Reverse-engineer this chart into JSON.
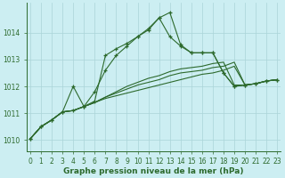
{
  "xlabel": "Graphe pression niveau de la mer (hPa)",
  "background_color": "#cceef2",
  "line_color": "#2d6a2d",
  "grid_color": "#aad4d8",
  "x": [
    0,
    1,
    2,
    3,
    4,
    5,
    6,
    7,
    8,
    9,
    10,
    11,
    12,
    13,
    14,
    15,
    16,
    17,
    18,
    19,
    20,
    21,
    22,
    23
  ],
  "lines_with_markers": [
    [
      1010.05,
      1010.5,
      1010.75,
      1011.05,
      1012.0,
      1011.25,
      1011.8,
      1012.6,
      1013.15,
      1013.5,
      1013.85,
      1014.1,
      1014.55,
      1014.75,
      1013.55,
      1013.25,
      1013.25,
      1013.25,
      1012.5,
      1012.0,
      1012.05,
      1012.1,
      1012.2,
      1012.25
    ],
    [
      1010.05,
      1010.5,
      1010.75,
      1011.05,
      1011.1,
      1011.25,
      1011.45,
      1013.15,
      1013.4,
      1013.6,
      1013.85,
      1014.15,
      1014.55,
      1013.85,
      1013.5,
      1013.25,
      1013.25,
      1013.25,
      1012.5,
      1012.0,
      1012.05,
      1012.1,
      1012.2,
      1012.25
    ]
  ],
  "lines_no_markers": [
    [
      1010.05,
      1010.5,
      1010.75,
      1011.05,
      1011.1,
      1011.25,
      1011.4,
      1011.6,
      1011.8,
      1012.0,
      1012.15,
      1012.3,
      1012.4,
      1012.55,
      1012.65,
      1012.7,
      1012.75,
      1012.85,
      1012.9,
      1012.05,
      1012.05,
      1012.1,
      1012.2,
      1012.25
    ],
    [
      1010.05,
      1010.5,
      1010.75,
      1011.05,
      1011.1,
      1011.25,
      1011.4,
      1011.6,
      1011.75,
      1011.9,
      1012.05,
      1012.15,
      1012.25,
      1012.4,
      1012.5,
      1012.55,
      1012.6,
      1012.7,
      1012.75,
      1012.9,
      1012.05,
      1012.1,
      1012.2,
      1012.25
    ],
    [
      1010.05,
      1010.5,
      1010.75,
      1011.05,
      1011.1,
      1011.25,
      1011.4,
      1011.55,
      1011.65,
      1011.75,
      1011.85,
      1011.95,
      1012.05,
      1012.15,
      1012.25,
      1012.35,
      1012.45,
      1012.5,
      1012.6,
      1012.75,
      1012.05,
      1012.1,
      1012.2,
      1012.25
    ]
  ],
  "ylim": [
    1009.6,
    1015.1
  ],
  "yticks": [
    1010,
    1011,
    1012,
    1013,
    1014
  ],
  "xticks": [
    0,
    1,
    2,
    3,
    4,
    5,
    6,
    7,
    8,
    9,
    10,
    11,
    12,
    13,
    14,
    15,
    16,
    17,
    18,
    19,
    20,
    21,
    22,
    23
  ],
  "marker": "+",
  "markersize": 3,
  "linewidth": 0.8,
  "tick_fontsize": 5.5,
  "xlabel_fontsize": 6.5
}
